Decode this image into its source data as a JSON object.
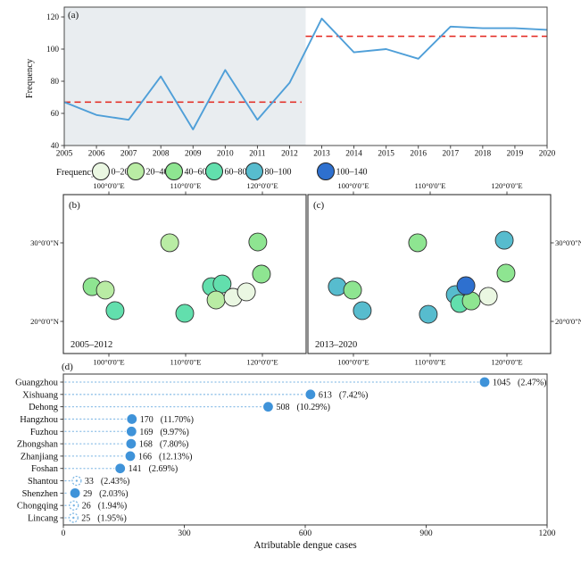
{
  "figure": {
    "panel_labels": {
      "a": "(a)",
      "b": "(b)",
      "c": "(c)",
      "d": "(d)"
    }
  },
  "legend": {
    "title": "Frequency",
    "bins": [
      {
        "label": "0–20",
        "color": "#eaf7e2"
      },
      {
        "label": "20–40",
        "color": "#b9eca4"
      },
      {
        "label": "40–60",
        "color": "#8ee591"
      },
      {
        "label": "60–80",
        "color": "#62dfad"
      },
      {
        "label": "80–100",
        "color": "#57bcce"
      },
      {
        "label": "100–140",
        "color": "#2e70cf"
      }
    ]
  },
  "maps": {
    "lon_tick_labels": [
      "100°0'0\"E",
      "110°0'0\"E",
      "120°0'0\"E"
    ],
    "lat_tick_labels": [
      "30°0'0\"N",
      "20°0'0\"N"
    ],
    "land_color": "#f8dcb1"
  },
  "chart_data": [
    {
      "id": "a",
      "type": "line",
      "title": "",
      "ylabel": "Frequency",
      "x": [
        2005,
        2006,
        2007,
        2008,
        2009,
        2010,
        2011,
        2012,
        2013,
        2014,
        2015,
        2016,
        2017,
        2018,
        2019,
        2020
      ],
      "values": [
        67,
        59,
        56,
        83,
        50,
        87,
        56,
        79,
        119,
        98,
        100,
        94,
        114,
        113,
        113,
        112
      ],
      "ylim": [
        40,
        128
      ],
      "yticks": [
        40,
        60,
        80,
        100,
        120
      ],
      "shaded_region_years": [
        2005,
        2012.5
      ],
      "mean_lines": [
        {
          "value": 67,
          "span": [
            2005,
            2012.37
          ]
        },
        {
          "value": 108,
          "span": [
            2012.5,
            2020
          ]
        }
      ],
      "line_color": "#4f9fd8",
      "dash_color": "#e3251c",
      "shade_color": "#e9edf0"
    },
    {
      "id": "b",
      "type": "bubble-map",
      "period": "2005–2012",
      "cities": [
        {
          "name": "Dehong",
          "fx": 0.118,
          "fy": 0.579,
          "bin": "40–60"
        },
        {
          "name": "Lincang",
          "fx": 0.173,
          "fy": 0.601,
          "bin": "20–40"
        },
        {
          "name": "Xishuang",
          "fx": 0.213,
          "fy": 0.73,
          "bin": "60–80"
        },
        {
          "name": "Chongqing",
          "fx": 0.438,
          "fy": 0.303,
          "bin": "20–40"
        },
        {
          "name": "Hangzhou",
          "fx": 0.801,
          "fy": 0.298,
          "bin": "40–60"
        },
        {
          "name": "Fuzhou",
          "fx": 0.816,
          "fy": 0.5,
          "bin": "40–60"
        },
        {
          "name": "Zhanjiang",
          "fx": 0.5,
          "fy": 0.747,
          "bin": "60–80"
        },
        {
          "name": "Foshan",
          "fx": 0.61,
          "fy": 0.579,
          "bin": "60–80"
        },
        {
          "name": "Guangzhou",
          "fx": 0.654,
          "fy": 0.562,
          "bin": "60–80"
        },
        {
          "name": "Zhongshan",
          "fx": 0.629,
          "fy": 0.663,
          "bin": "20–40"
        },
        {
          "name": "Shenzhen",
          "fx": 0.699,
          "fy": 0.646,
          "bin": "0–20"
        },
        {
          "name": "Shantou",
          "fx": 0.754,
          "fy": 0.612,
          "bin": "0–20"
        }
      ]
    },
    {
      "id": "c",
      "type": "bubble-map",
      "period": "2013–2020",
      "cities": [
        {
          "name": "Dehong",
          "fx": 0.121,
          "fy": 0.579,
          "bin": "80–100"
        },
        {
          "name": "Lincang",
          "fx": 0.184,
          "fy": 0.601,
          "bin": "40–60"
        },
        {
          "name": "Xishuang",
          "fx": 0.224,
          "fy": 0.73,
          "bin": "80–100"
        },
        {
          "name": "Chongqing",
          "fx": 0.452,
          "fy": 0.303,
          "bin": "40–60"
        },
        {
          "name": "Hangzhou",
          "fx": 0.809,
          "fy": 0.287,
          "bin": "80–100"
        },
        {
          "name": "Fuzhou",
          "fx": 0.816,
          "fy": 0.494,
          "bin": "40–60"
        },
        {
          "name": "Zhanjiang",
          "fx": 0.496,
          "fy": 0.753,
          "bin": "80–100"
        },
        {
          "name": "Foshan",
          "fx": 0.607,
          "fy": 0.629,
          "bin": "80–100"
        },
        {
          "name": "Zhongshan",
          "fx": 0.625,
          "fy": 0.685,
          "bin": "60–80"
        },
        {
          "name": "Shenzhen",
          "fx": 0.673,
          "fy": 0.669,
          "bin": "40–60"
        },
        {
          "name": "Shantou",
          "fx": 0.743,
          "fy": 0.64,
          "bin": "0–20"
        },
        {
          "name": "Guangzhou",
          "fx": 0.651,
          "fy": 0.573,
          "bin": "100–140"
        }
      ]
    },
    {
      "id": "d",
      "type": "lollipop",
      "xlabel": "Atributable dengue cases",
      "xticks": [
        0,
        300,
        600,
        900,
        1200
      ],
      "xlim": [
        0,
        1200
      ],
      "categories": [
        "Guangzhou",
        "Xishuang",
        "Dehong",
        "Hangzhou",
        "Fuzhou",
        "Zhongshan",
        "Zhanjiang",
        "Foshan",
        "Shantou",
        "Shenzhen",
        "Chongqing",
        "Lincang"
      ],
      "values": [
        1045,
        613,
        508,
        170,
        169,
        168,
        166,
        141,
        33,
        29,
        26,
        25
      ],
      "percents": [
        "2.47%",
        "7.42%",
        "10.29%",
        "11.70%",
        "9.97%",
        "7.80%",
        "12.13%",
        "2.69%",
        "2.43%",
        "2.03%",
        "1.94%",
        "1.95%"
      ],
      "hollow": [
        false,
        false,
        false,
        false,
        false,
        false,
        false,
        false,
        true,
        false,
        true,
        true
      ],
      "dot_color": "#3f93d9",
      "leader_color": "#8fc0e8",
      "hollow_stroke": "#74b2e2"
    }
  ]
}
